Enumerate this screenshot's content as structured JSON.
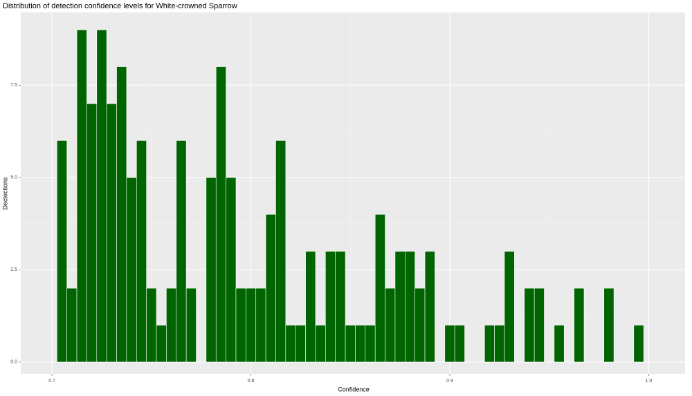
{
  "chart_data": {
    "type": "histogram",
    "title": "Distribution of detection confidence levels for White-crowned Sparrow",
    "x_label": "Confidence",
    "y_label": "Dectections",
    "color": "#006400",
    "bins": [
      0.7025,
      0.7075,
      0.7125,
      0.7175,
      0.7225,
      0.7275,
      0.7325,
      0.7375,
      0.7425,
      0.7475,
      0.7525,
      0.7575,
      0.7625,
      0.7675,
      0.7725,
      0.7775,
      0.7825,
      0.7875,
      0.7925,
      0.7975,
      0.8025,
      0.8075,
      0.8125,
      0.8175,
      0.8225,
      0.8275,
      0.8325,
      0.8375,
      0.8425,
      0.8475,
      0.8525,
      0.8575,
      0.8625,
      0.8675,
      0.8725,
      0.8775,
      0.8825,
      0.8875,
      0.8925,
      0.8975,
      0.9025,
      0.9075,
      0.9125,
      0.9175,
      0.9225,
      0.9275,
      0.9325,
      0.9375,
      0.9425,
      0.9475,
      0.9525,
      0.9575,
      0.9625,
      0.9675,
      0.9725,
      0.9775,
      0.9825,
      0.9875,
      0.9925,
      0.9975
    ],
    "values": [
      6,
      2,
      9,
      7,
      9,
      7,
      8,
      5,
      6,
      2,
      1,
      2,
      6,
      2,
      0,
      5,
      8,
      5,
      2,
      2,
      2,
      4,
      6,
      1,
      1,
      3,
      1,
      3,
      3,
      1,
      1,
      1,
      4,
      2,
      3,
      3,
      2,
      3,
      0,
      1,
      1,
      0,
      0,
      1,
      1,
      3,
      0,
      2,
      2,
      0,
      1,
      0,
      2,
      0,
      0,
      2,
      0,
      0,
      1
    ],
    "xlim": [
      0.6843,
      1.0183
    ],
    "ylim": [
      -0.32,
      9.47
    ],
    "xticks": [
      0.7,
      0.8,
      0.9,
      {
        "value": 1,
        "label": "1.0"
      }
    ],
    "yticks": [
      {
        "value": 0,
        "label": "0.0"
      },
      2.5,
      {
        "value": 5,
        "label": "5.0"
      },
      7.5
    ],
    "grid": true
  }
}
